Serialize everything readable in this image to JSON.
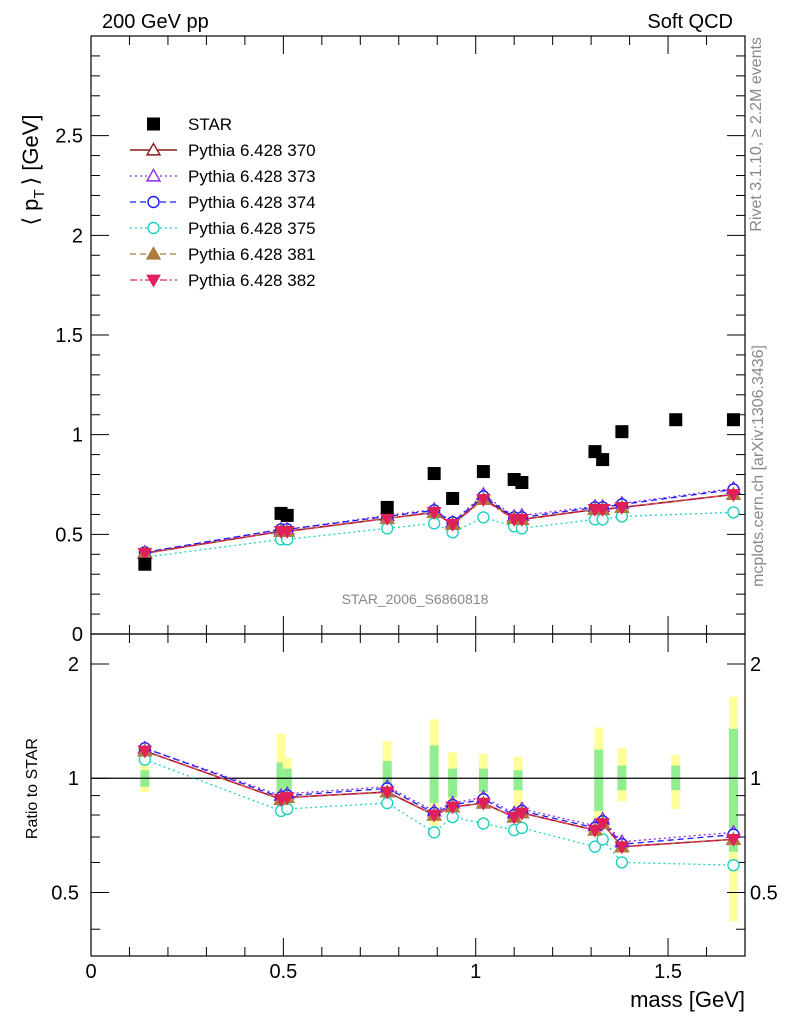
{
  "header": {
    "left": "200 GeV pp",
    "right": "Soft QCD"
  },
  "side_labels": {
    "rivet": "Rivet 3.1.10, ≥ 2.2M events",
    "mcplots": "mcplots.cern.ch [arXiv:1306.3436]"
  },
  "watermark": "STAR_2006_S6860818",
  "colors": {
    "STAR": "#000000",
    "Pythia 6.428 370": "#8b1a1a",
    "Pythia 6.428 373": "#8a2be2",
    "Pythia 6.428 374": "#1a1aff",
    "Pythia 6.428 375": "#1fd1c0",
    "Pythia 6.428 381": "#b07a3c",
    "Pythia 6.428 382": "#e0205a",
    "band_inner": "#90ee90",
    "band_outer": "#ffff99"
  },
  "chart_data": [
    {
      "type": "scatter",
      "panel": "main",
      "xlabel": "mass [GeV]",
      "ylabel": "⟨ p_T ⟩ [GeV]",
      "ylabel_parts": {
        "open": "⟨ p",
        "sub": "T",
        "close": "⟩ [GeV]"
      },
      "xlim": [
        0,
        1.7
      ],
      "ylim": [
        0,
        3.0
      ],
      "x_ticks": [
        "0",
        "0.5",
        "1",
        "1.5"
      ],
      "y_ticks": [
        "0",
        "0.5",
        "1",
        "1.5",
        "2",
        "2.5"
      ],
      "legend_position": "top-left",
      "x": [
        0.14,
        0.494,
        0.51,
        0.77,
        0.892,
        0.94,
        1.02,
        1.1,
        1.12,
        1.31,
        1.33,
        1.38,
        1.52,
        1.67
      ],
      "series": [
        {
          "name": "STAR",
          "marker": "filled-square",
          "line": "none",
          "x": [
            0.14,
            0.494,
            0.51,
            0.77,
            0.892,
            0.94,
            1.02,
            1.1,
            1.12,
            1.31,
            1.33,
            1.38,
            1.52,
            1.67
          ],
          "values": [
            0.35,
            0.605,
            0.595,
            0.635,
            0.805,
            0.68,
            0.815,
            0.775,
            0.76,
            0.915,
            0.875,
            1.015,
            1.075,
            1.075
          ]
        },
        {
          "name": "Pythia 6.428 370",
          "marker": "open-triangle-up",
          "line": "solid",
          "x": [
            0.14,
            0.494,
            0.51,
            0.77,
            0.892,
            0.94,
            1.02,
            1.1,
            1.12,
            1.31,
            1.33,
            1.38,
            1.67
          ],
          "values": [
            0.405,
            0.515,
            0.515,
            0.58,
            0.61,
            0.55,
            0.68,
            0.58,
            0.575,
            0.625,
            0.625,
            0.635,
            0.7
          ]
        },
        {
          "name": "Pythia 6.428 373",
          "marker": "open-triangle-up",
          "line": "dotted",
          "x": [
            0.14,
            0.494,
            0.51,
            0.77,
            0.892,
            0.94,
            1.02,
            1.1,
            1.12,
            1.31,
            1.33,
            1.38,
            1.67
          ],
          "values": [
            0.41,
            0.525,
            0.525,
            0.595,
            0.625,
            0.56,
            0.7,
            0.59,
            0.595,
            0.64,
            0.64,
            0.655,
            0.73
          ]
        },
        {
          "name": "Pythia 6.428 374",
          "marker": "open-circle",
          "line": "dashed",
          "x": [
            0.14,
            0.494,
            0.51,
            0.77,
            0.892,
            0.94,
            1.02,
            1.1,
            1.12,
            1.31,
            1.33,
            1.38,
            1.67
          ],
          "values": [
            0.41,
            0.525,
            0.525,
            0.59,
            0.62,
            0.56,
            0.69,
            0.585,
            0.585,
            0.635,
            0.635,
            0.65,
            0.725
          ]
        },
        {
          "name": "Pythia 6.428 375",
          "marker": "open-circle",
          "line": "dotted",
          "x": [
            0.14,
            0.494,
            0.51,
            0.77,
            0.892,
            0.94,
            1.02,
            1.1,
            1.12,
            1.31,
            1.33,
            1.38,
            1.67
          ],
          "values": [
            0.385,
            0.475,
            0.475,
            0.53,
            0.555,
            0.51,
            0.585,
            0.54,
            0.53,
            0.575,
            0.575,
            0.59,
            0.61
          ]
        },
        {
          "name": "Pythia 6.428 381",
          "marker": "filled-triangle-up",
          "line": "dashed",
          "x": [
            0.14,
            0.494,
            0.51,
            0.77,
            0.892,
            0.94,
            1.02,
            1.1,
            1.12,
            1.31,
            1.33,
            1.38,
            1.67
          ],
          "values": [
            0.405,
            0.515,
            0.515,
            0.58,
            0.61,
            0.55,
            0.675,
            0.58,
            0.575,
            0.625,
            0.625,
            0.635,
            0.7
          ]
        },
        {
          "name": "Pythia 6.428 382",
          "marker": "filled-triangle-down",
          "line": "dashdot",
          "x": [
            0.14,
            0.494,
            0.51,
            0.77,
            0.892,
            0.94,
            1.02,
            1.1,
            1.12,
            1.31,
            1.33,
            1.38,
            1.67
          ],
          "values": [
            0.405,
            0.515,
            0.515,
            0.58,
            0.61,
            0.55,
            0.675,
            0.575,
            0.575,
            0.625,
            0.625,
            0.635,
            0.7
          ]
        }
      ]
    },
    {
      "type": "line",
      "panel": "ratio",
      "xlabel": "mass [GeV]",
      "ylabel": "Ratio to STAR",
      "xlim": [
        0,
        1.7
      ],
      "ylim": [
        0.34,
        2.4
      ],
      "log_y": true,
      "x_ticks": [
        "0",
        "0.5",
        "1",
        "1.5"
      ],
      "y_ticks": [
        "0.5",
        "1",
        "2"
      ],
      "reference_line": 1,
      "uncertainty_bands": [
        {
          "x": 0.14,
          "inner": [
            0.95,
            1.05
          ],
          "outer": [
            0.92,
            1.08
          ]
        },
        {
          "x": 0.494,
          "inner": [
            0.84,
            1.1
          ],
          "outer": [
            0.8,
            1.31
          ]
        },
        {
          "x": 0.51,
          "inner": [
            0.87,
            1.06
          ],
          "outer": [
            0.83,
            1.13
          ]
        },
        {
          "x": 0.77,
          "inner": [
            0.9,
            1.11
          ],
          "outer": [
            0.86,
            1.25
          ]
        },
        {
          "x": 0.892,
          "inner": [
            0.86,
            1.22
          ],
          "outer": [
            0.75,
            1.43
          ]
        },
        {
          "x": 0.94,
          "inner": [
            0.89,
            1.06
          ],
          "outer": [
            0.84,
            1.17
          ]
        },
        {
          "x": 1.02,
          "inner": [
            0.92,
            1.06
          ],
          "outer": [
            0.86,
            1.16
          ]
        },
        {
          "x": 1.11,
          "inner": [
            0.93,
            1.05
          ],
          "outer": [
            0.84,
            1.14
          ]
        },
        {
          "x": 1.32,
          "inner": [
            0.82,
            1.19
          ],
          "outer": [
            0.7,
            1.36
          ]
        },
        {
          "x": 1.38,
          "inner": [
            0.93,
            1.08
          ],
          "outer": [
            0.87,
            1.2
          ]
        },
        {
          "x": 1.52,
          "inner": [
            0.93,
            1.08
          ],
          "outer": [
            0.83,
            1.15
          ]
        },
        {
          "x": 1.67,
          "inner": [
            0.64,
            1.35
          ],
          "outer": [
            0.42,
            1.64
          ]
        }
      ],
      "series": [
        {
          "name": "Pythia 6.428 370",
          "x": [
            0.14,
            0.494,
            0.51,
            0.77,
            0.892,
            0.94,
            1.02,
            1.1,
            1.12,
            1.31,
            1.33,
            1.38,
            1.67
          ],
          "values": [
            1.18,
            0.88,
            0.89,
            0.92,
            0.8,
            0.84,
            0.86,
            0.79,
            0.81,
            0.73,
            0.76,
            0.66,
            0.69
          ]
        },
        {
          "name": "Pythia 6.428 373",
          "x": [
            0.14,
            0.494,
            0.51,
            0.77,
            0.892,
            0.94,
            1.02,
            1.1,
            1.12,
            1.31,
            1.33,
            1.38,
            1.67
          ],
          "values": [
            1.2,
            0.9,
            0.91,
            0.95,
            0.82,
            0.86,
            0.89,
            0.81,
            0.83,
            0.75,
            0.78,
            0.68,
            0.72
          ]
        },
        {
          "name": "Pythia 6.428 374",
          "x": [
            0.14,
            0.494,
            0.51,
            0.77,
            0.892,
            0.94,
            1.02,
            1.1,
            1.12,
            1.31,
            1.33,
            1.38,
            1.67
          ],
          "values": [
            1.2,
            0.89,
            0.9,
            0.94,
            0.81,
            0.85,
            0.88,
            0.8,
            0.82,
            0.74,
            0.77,
            0.67,
            0.71
          ]
        },
        {
          "name": "Pythia 6.428 375",
          "x": [
            0.14,
            0.494,
            0.51,
            0.77,
            0.892,
            0.94,
            1.02,
            1.1,
            1.12,
            1.31,
            1.33,
            1.38,
            1.67
          ],
          "values": [
            1.12,
            0.82,
            0.83,
            0.86,
            0.72,
            0.79,
            0.76,
            0.73,
            0.74,
            0.66,
            0.69,
            0.6,
            0.59
          ]
        },
        {
          "name": "Pythia 6.428 381",
          "x": [
            0.14,
            0.494,
            0.51,
            0.77,
            0.892,
            0.94,
            1.02,
            1.1,
            1.12,
            1.31,
            1.33,
            1.38,
            1.67
          ],
          "values": [
            1.18,
            0.88,
            0.89,
            0.92,
            0.8,
            0.84,
            0.86,
            0.79,
            0.81,
            0.73,
            0.76,
            0.66,
            0.69
          ]
        },
        {
          "name": "Pythia 6.428 382",
          "x": [
            0.14,
            0.494,
            0.51,
            0.77,
            0.892,
            0.94,
            1.02,
            1.1,
            1.12,
            1.31,
            1.33,
            1.38,
            1.67
          ],
          "values": [
            1.18,
            0.88,
            0.89,
            0.92,
            0.8,
            0.84,
            0.86,
            0.79,
            0.81,
            0.73,
            0.76,
            0.66,
            0.69
          ]
        }
      ]
    }
  ]
}
